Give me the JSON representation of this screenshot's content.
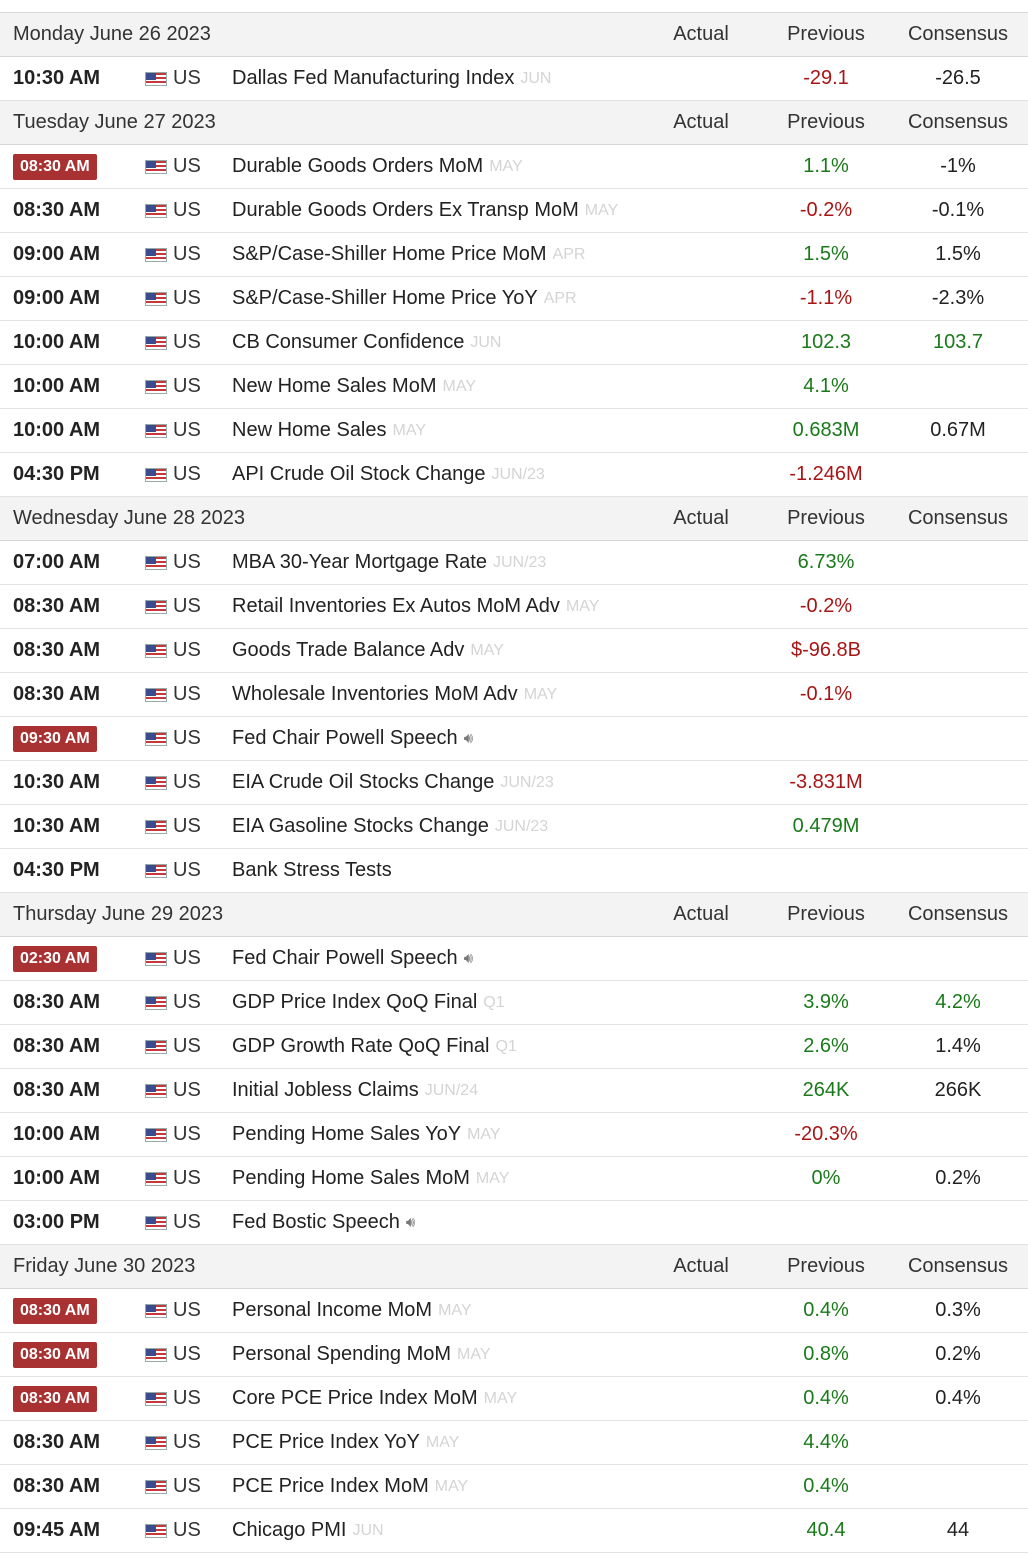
{
  "columns": {
    "actual": "Actual",
    "previous": "Previous",
    "consensus": "Consensus"
  },
  "days": [
    {
      "date": "Monday June 26 2023",
      "events": [
        {
          "time": "10:30 AM",
          "hl": false,
          "country": "US",
          "event": "Dallas Fed Manufacturing Index",
          "period": "JUN",
          "actual": "",
          "previous": "-29.1",
          "pc": "neg",
          "consensus": "-26.5",
          "cc": "neu"
        }
      ]
    },
    {
      "date": "Tuesday June 27 2023",
      "events": [
        {
          "time": "08:30 AM",
          "hl": true,
          "country": "US",
          "event": "Durable Goods Orders MoM",
          "period": "MAY",
          "actual": "",
          "previous": "1.1%",
          "pc": "pos",
          "consensus": "-1%",
          "cc": "neu"
        },
        {
          "time": "08:30 AM",
          "hl": false,
          "country": "US",
          "event": "Durable Goods Orders Ex Transp MoM",
          "period": "MAY",
          "actual": "",
          "previous": "-0.2%",
          "pc": "neg",
          "consensus": "-0.1%",
          "cc": "neu"
        },
        {
          "time": "09:00 AM",
          "hl": false,
          "country": "US",
          "event": "S&P/Case-Shiller Home Price MoM",
          "period": "APR",
          "actual": "",
          "previous": "1.5%",
          "pc": "pos",
          "consensus": "1.5%",
          "cc": "neu"
        },
        {
          "time": "09:00 AM",
          "hl": false,
          "country": "US",
          "event": "S&P/Case-Shiller Home Price YoY",
          "period": "APR",
          "actual": "",
          "previous": "-1.1%",
          "pc": "neg",
          "consensus": "-2.3%",
          "cc": "neu"
        },
        {
          "time": "10:00 AM",
          "hl": false,
          "country": "US",
          "event": "CB Consumer Confidence",
          "period": "JUN",
          "actual": "",
          "previous": "102.3",
          "pc": "pos",
          "consensus": "103.7",
          "cc": "pos"
        },
        {
          "time": "10:00 AM",
          "hl": false,
          "country": "US",
          "event": "New Home Sales MoM",
          "period": "MAY",
          "actual": "",
          "previous": "4.1%",
          "pc": "pos",
          "consensus": "",
          "cc": "neu"
        },
        {
          "time": "10:00 AM",
          "hl": false,
          "country": "US",
          "event": "New Home Sales",
          "period": "MAY",
          "actual": "",
          "previous": "0.683M",
          "pc": "pos",
          "consensus": "0.67M",
          "cc": "neu"
        },
        {
          "time": "04:30 PM",
          "hl": false,
          "country": "US",
          "event": "API Crude Oil Stock Change",
          "period": "JUN/23",
          "actual": "",
          "previous": "-1.246M",
          "pc": "neg",
          "consensus": "",
          "cc": "neu"
        }
      ]
    },
    {
      "date": "Wednesday June 28 2023",
      "events": [
        {
          "time": "07:00 AM",
          "hl": false,
          "country": "US",
          "event": "MBA 30-Year Mortgage Rate",
          "period": "JUN/23",
          "actual": "",
          "previous": "6.73%",
          "pc": "pos",
          "consensus": "",
          "cc": "neu"
        },
        {
          "time": "08:30 AM",
          "hl": false,
          "country": "US",
          "event": "Retail Inventories Ex Autos MoM Adv",
          "period": "MAY",
          "actual": "",
          "previous": "-0.2%",
          "pc": "neg",
          "consensus": "",
          "cc": "neu"
        },
        {
          "time": "08:30 AM",
          "hl": false,
          "country": "US",
          "event": "Goods Trade Balance Adv",
          "period": "MAY",
          "actual": "",
          "previous": "$-96.8B",
          "pc": "neg",
          "consensus": "",
          "cc": "neu"
        },
        {
          "time": "08:30 AM",
          "hl": false,
          "country": "US",
          "event": "Wholesale Inventories MoM Adv",
          "period": "MAY",
          "actual": "",
          "previous": "-0.1%",
          "pc": "neg",
          "consensus": "",
          "cc": "neu"
        },
        {
          "time": "09:30 AM",
          "hl": true,
          "country": "US",
          "event": "Fed Chair Powell Speech",
          "period": "",
          "speaker": true,
          "actual": "",
          "previous": "",
          "pc": "neu",
          "consensus": "",
          "cc": "neu"
        },
        {
          "time": "10:30 AM",
          "hl": false,
          "country": "US",
          "event": "EIA Crude Oil Stocks Change",
          "period": "JUN/23",
          "actual": "",
          "previous": "-3.831M",
          "pc": "neg",
          "consensus": "",
          "cc": "neu"
        },
        {
          "time": "10:30 AM",
          "hl": false,
          "country": "US",
          "event": "EIA Gasoline Stocks Change",
          "period": "JUN/23",
          "actual": "",
          "previous": "0.479M",
          "pc": "pos",
          "consensus": "",
          "cc": "neu"
        },
        {
          "time": "04:30 PM",
          "hl": false,
          "country": "US",
          "event": "Bank Stress Tests",
          "period": "",
          "actual": "",
          "previous": "",
          "pc": "neu",
          "consensus": "",
          "cc": "neu"
        }
      ]
    },
    {
      "date": "Thursday June 29 2023",
      "events": [
        {
          "time": "02:30 AM",
          "hl": true,
          "country": "US",
          "event": "Fed Chair Powell Speech",
          "period": "",
          "speaker": true,
          "actual": "",
          "previous": "",
          "pc": "neu",
          "consensus": "",
          "cc": "neu"
        },
        {
          "time": "08:30 AM",
          "hl": false,
          "country": "US",
          "event": "GDP Price Index QoQ Final",
          "period": "Q1",
          "actual": "",
          "previous": "3.9%",
          "pc": "pos",
          "consensus": "4.2%",
          "cc": "pos"
        },
        {
          "time": "08:30 AM",
          "hl": false,
          "country": "US",
          "event": "GDP Growth Rate QoQ Final",
          "period": "Q1",
          "actual": "",
          "previous": "2.6%",
          "pc": "pos",
          "consensus": "1.4%",
          "cc": "neu"
        },
        {
          "time": "08:30 AM",
          "hl": false,
          "country": "US",
          "event": "Initial Jobless Claims",
          "period": "JUN/24",
          "actual": "",
          "previous": "264K",
          "pc": "pos",
          "consensus": "266K",
          "cc": "neu"
        },
        {
          "time": "10:00 AM",
          "hl": false,
          "country": "US",
          "event": "Pending Home Sales YoY",
          "period": "MAY",
          "actual": "",
          "previous": "-20.3%",
          "pc": "neg",
          "consensus": "",
          "cc": "neu"
        },
        {
          "time": "10:00 AM",
          "hl": false,
          "country": "US",
          "event": "Pending Home Sales MoM",
          "period": "MAY",
          "actual": "",
          "previous": "0%",
          "pc": "pos",
          "consensus": "0.2%",
          "cc": "neu"
        },
        {
          "time": "03:00 PM",
          "hl": false,
          "country": "US",
          "event": "Fed Bostic Speech",
          "period": "",
          "speaker": true,
          "actual": "",
          "previous": "",
          "pc": "neu",
          "consensus": "",
          "cc": "neu"
        }
      ]
    },
    {
      "date": "Friday June 30 2023",
      "events": [
        {
          "time": "08:30 AM",
          "hl": true,
          "country": "US",
          "event": "Personal Income MoM",
          "period": "MAY",
          "actual": "",
          "previous": "0.4%",
          "pc": "pos",
          "consensus": "0.3%",
          "cc": "neu"
        },
        {
          "time": "08:30 AM",
          "hl": true,
          "country": "US",
          "event": "Personal Spending MoM",
          "period": "MAY",
          "actual": "",
          "previous": "0.8%",
          "pc": "pos",
          "consensus": "0.2%",
          "cc": "neu"
        },
        {
          "time": "08:30 AM",
          "hl": true,
          "country": "US",
          "event": "Core PCE Price Index MoM",
          "period": "MAY",
          "actual": "",
          "previous": "0.4%",
          "pc": "pos",
          "consensus": "0.4%",
          "cc": "neu"
        },
        {
          "time": "08:30 AM",
          "hl": false,
          "country": "US",
          "event": "PCE Price Index YoY",
          "period": "MAY",
          "actual": "",
          "previous": "4.4%",
          "pc": "pos",
          "consensus": "",
          "cc": "neu"
        },
        {
          "time": "08:30 AM",
          "hl": false,
          "country": "US",
          "event": "PCE Price Index MoM",
          "period": "MAY",
          "actual": "",
          "previous": "0.4%",
          "pc": "pos",
          "consensus": "",
          "cc": "neu"
        },
        {
          "time": "09:45 AM",
          "hl": false,
          "country": "US",
          "event": "Chicago PMI",
          "period": "JUN",
          "actual": "",
          "previous": "40.4",
          "pc": "pos",
          "consensus": "44",
          "cc": "neu"
        }
      ]
    }
  ],
  "colors": {
    "highlight": "#a83232",
    "positive": "#1a7a1a",
    "negative": "#a81515",
    "period": "#d4d4d4",
    "header_bg": "#f3f3f3"
  },
  "icons": {
    "speaker": "speaker-icon",
    "flag": "us-flag-icon"
  }
}
